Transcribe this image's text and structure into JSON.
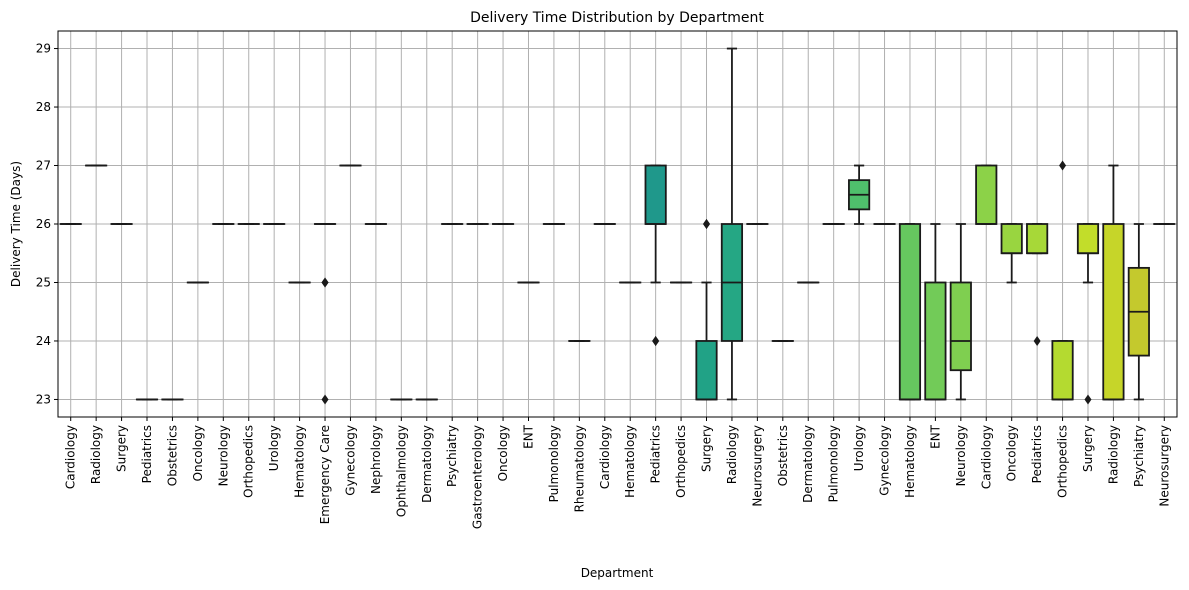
{
  "chart_data": {
    "type": "box",
    "title": "Delivery Time Distribution by Department",
    "xlabel": "Department",
    "ylabel": "Delivery Time (Days)",
    "ylim": [
      22.7,
      29.3
    ],
    "yticks": [
      23,
      24,
      25,
      26,
      27,
      28,
      29
    ],
    "grid": true,
    "legend": "none",
    "categories": [
      "Cardiology",
      "Radiology",
      "Surgery",
      "Pediatrics",
      "Obstetrics",
      "Oncology",
      "Neurology",
      "Orthopedics",
      "Urology",
      "Hematology",
      "Emergency Care",
      "Gynecology",
      "Nephrology",
      "Ophthalmology",
      "Dermatology",
      "Psychiatry",
      "Gastroenterology",
      "Oncology",
      "ENT",
      "Pulmonology",
      "Rheumatology",
      "Cardiology",
      "Hematology",
      "Pediatrics",
      "Orthopedics",
      "Surgery",
      "Radiology",
      "Neurosurgery",
      "Obstetrics",
      "Dermatology",
      "Pulmonology",
      "Urology",
      "Gynecology",
      "Hematology",
      "ENT",
      "Neurology",
      "Cardiology",
      "Oncology",
      "Pediatrics",
      "Orthopedics",
      "Surgery",
      "Radiology",
      "Psychiatry",
      "Neurosurgery"
    ],
    "boxes": [
      {
        "q1": 26,
        "median": 26,
        "q3": 26,
        "whisker_low": 26,
        "whisker_high": 26,
        "outliers": [],
        "color": "#440154"
      },
      {
        "q1": 27,
        "median": 27,
        "q3": 27,
        "whisker_low": 27,
        "whisker_high": 27,
        "outliers": [],
        "color": "#450a5c"
      },
      {
        "q1": 26,
        "median": 26,
        "q3": 26,
        "whisker_low": 26,
        "whisker_high": 26,
        "outliers": [],
        "color": "#471465"
      },
      {
        "q1": 23,
        "median": 23,
        "q3": 23,
        "whisker_low": 23,
        "whisker_high": 23,
        "outliers": [],
        "color": "#481c6e"
      },
      {
        "q1": 23,
        "median": 23,
        "q3": 23,
        "whisker_low": 23,
        "whisker_high": 23,
        "outliers": [],
        "color": "#482475"
      },
      {
        "q1": 25,
        "median": 25,
        "q3": 25,
        "whisker_low": 25,
        "whisker_high": 25,
        "outliers": [],
        "color": "#472c7a"
      },
      {
        "q1": 26,
        "median": 26,
        "q3": 26,
        "whisker_low": 26,
        "whisker_high": 26,
        "outliers": [],
        "color": "#46337f"
      },
      {
        "q1": 26,
        "median": 26,
        "q3": 26,
        "whisker_low": 26,
        "whisker_high": 26,
        "outliers": [],
        "color": "#443a83"
      },
      {
        "q1": 26,
        "median": 26,
        "q3": 26,
        "whisker_low": 26,
        "whisker_high": 26,
        "outliers": [],
        "color": "#424186"
      },
      {
        "q1": 25,
        "median": 25,
        "q3": 25,
        "whisker_low": 25,
        "whisker_high": 25,
        "outliers": [],
        "color": "#3f4889"
      },
      {
        "q1": 26,
        "median": 26,
        "q3": 26,
        "whisker_low": 26,
        "whisker_high": 26,
        "outliers": [
          25,
          25,
          23
        ],
        "color": "#3c4f8a"
      },
      {
        "q1": 27,
        "median": 27,
        "q3": 27,
        "whisker_low": 27,
        "whisker_high": 27,
        "outliers": [],
        "color": "#39558c"
      },
      {
        "q1": 26,
        "median": 26,
        "q3": 26,
        "whisker_low": 26,
        "whisker_high": 26,
        "outliers": [],
        "color": "#365c8d"
      },
      {
        "q1": 23,
        "median": 23,
        "q3": 23,
        "whisker_low": 23,
        "whisker_high": 23,
        "outliers": [],
        "color": "#33628d"
      },
      {
        "q1": 23,
        "median": 23,
        "q3": 23,
        "whisker_low": 23,
        "whisker_high": 23,
        "outliers": [],
        "color": "#30688e"
      },
      {
        "q1": 26,
        "median": 26,
        "q3": 26,
        "whisker_low": 26,
        "whisker_high": 26,
        "outliers": [],
        "color": "#2e6e8e"
      },
      {
        "q1": 26,
        "median": 26,
        "q3": 26,
        "whisker_low": 26,
        "whisker_high": 26,
        "outliers": [],
        "color": "#2c738e"
      },
      {
        "q1": 26,
        "median": 26,
        "q3": 26,
        "whisker_low": 26,
        "whisker_high": 26,
        "outliers": [],
        "color": "#2a788e"
      },
      {
        "q1": 25,
        "median": 25,
        "q3": 25,
        "whisker_low": 25,
        "whisker_high": 25,
        "outliers": [],
        "color": "#287e8e"
      },
      {
        "q1": 26,
        "median": 26,
        "q3": 26,
        "whisker_low": 26,
        "whisker_high": 26,
        "outliers": [],
        "color": "#26838e"
      },
      {
        "q1": 24,
        "median": 24,
        "q3": 24,
        "whisker_low": 24,
        "whisker_high": 24,
        "outliers": [],
        "color": "#24888e"
      },
      {
        "q1": 26,
        "median": 26,
        "q3": 26,
        "whisker_low": 26,
        "whisker_high": 26,
        "outliers": [],
        "color": "#228d8d"
      },
      {
        "q1": 25,
        "median": 25,
        "q3": 25,
        "whisker_low": 25,
        "whisker_high": 25,
        "outliers": [],
        "color": "#20928c"
      },
      {
        "q1": 26,
        "median": 26,
        "q3": 27,
        "whisker_low": 25,
        "whisker_high": 27,
        "outliers": [
          24,
          24
        ],
        "color": "#1f988b"
      },
      {
        "q1": 25,
        "median": 25,
        "q3": 25,
        "whisker_low": 25,
        "whisker_high": 25,
        "outliers": [],
        "color": "#1f9d89"
      },
      {
        "q1": 23,
        "median": 23,
        "q3": 24,
        "whisker_low": 23,
        "whisker_high": 25,
        "outliers": [
          26,
          26
        ],
        "color": "#21a286"
      },
      {
        "q1": 24,
        "median": 25,
        "q3": 26,
        "whisker_low": 23,
        "whisker_high": 29,
        "outliers": [],
        "color": "#25a784"
      },
      {
        "q1": 26,
        "median": 26,
        "q3": 26,
        "whisker_low": 26,
        "whisker_high": 26,
        "outliers": [],
        "color": "#2bac80"
      },
      {
        "q1": 24,
        "median": 24,
        "q3": 24,
        "whisker_low": 24,
        "whisker_high": 24,
        "outliers": [],
        "color": "#33b17c"
      },
      {
        "q1": 25,
        "median": 25,
        "q3": 25,
        "whisker_low": 25,
        "whisker_high": 25,
        "outliers": [],
        "color": "#3bb677"
      },
      {
        "q1": 26,
        "median": 26,
        "q3": 26,
        "whisker_low": 26,
        "whisker_high": 26,
        "outliers": [],
        "color": "#45ba72"
      },
      {
        "q1": 26.25,
        "median": 26.5,
        "q3": 26.75,
        "whisker_low": 26,
        "whisker_high": 27,
        "outliers": [],
        "color": "#4fbf6c"
      },
      {
        "q1": 26,
        "median": 26,
        "q3": 26,
        "whisker_low": 26,
        "whisker_high": 26,
        "outliers": [],
        "color": "#5ac366"
      },
      {
        "q1": 23,
        "median": 23,
        "q3": 26,
        "whisker_low": 23,
        "whisker_high": 26,
        "outliers": [],
        "color": "#66c75f"
      },
      {
        "q1": 23,
        "median": 23,
        "q3": 25,
        "whisker_low": 23,
        "whisker_high": 26,
        "outliers": [],
        "color": "#72cb58"
      },
      {
        "q1": 23.5,
        "median": 24,
        "q3": 25,
        "whisker_low": 23,
        "whisker_high": 26,
        "outliers": [],
        "color": "#7fcf50"
      },
      {
        "q1": 26,
        "median": 26,
        "q3": 27,
        "whisker_low": 26,
        "whisker_high": 27,
        "outliers": [],
        "color": "#8cd248"
      },
      {
        "q1": 25.5,
        "median": 25.5,
        "q3": 26,
        "whisker_low": 25,
        "whisker_high": 26,
        "outliers": [],
        "color": "#99d540"
      },
      {
        "q1": 25.5,
        "median": 25.5,
        "q3": 26,
        "whisker_low": 25.5,
        "whisker_high": 26,
        "outliers": [
          24
        ],
        "color": "#a7d838"
      },
      {
        "q1": 23,
        "median": 23,
        "q3": 24,
        "whisker_low": 23,
        "whisker_high": 24,
        "outliers": [
          27
        ],
        "color": "#b4da30"
      },
      {
        "q1": 25.5,
        "median": 25.5,
        "q3": 26,
        "whisker_low": 25,
        "whisker_high": 26,
        "outliers": [
          23
        ],
        "color": "#c2dd2a"
      },
      {
        "q1": 23,
        "median": 23,
        "q3": 26,
        "whisker_low": 23,
        "whisker_high": 27,
        "outliers": [],
        "color": "#c6d529"
      },
      {
        "q1": 23.75,
        "median": 24.5,
        "q3": 25.25,
        "whisker_low": 23,
        "whisker_high": 26,
        "outliers": [],
        "color": "#c4c92d"
      },
      {
        "q1": 26,
        "median": 26,
        "q3": 26,
        "whisker_low": 26,
        "whisker_high": 26,
        "outliers": [],
        "color": "#d6dd2a"
      }
    ]
  }
}
